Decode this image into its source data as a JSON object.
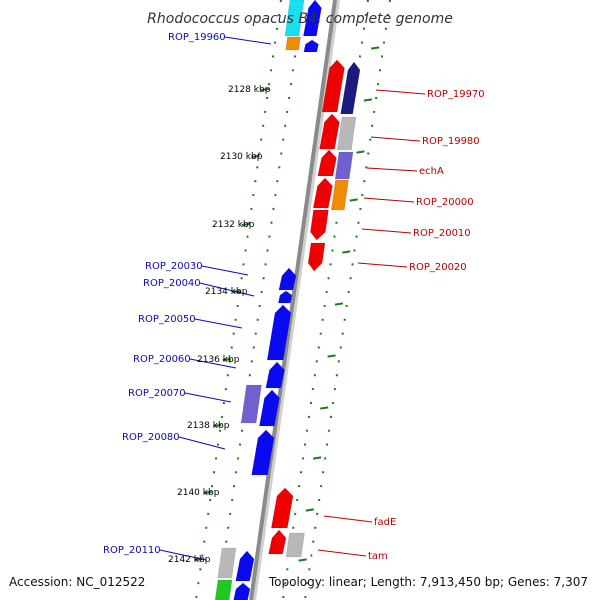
{
  "title": "Rhodococcus opacus B4, complete genome",
  "accession": "Accession: NC_012522",
  "summary": "Topology: linear; Length: 7,913,450 bp; Genes: 7,307",
  "colors": {
    "backbone": "#8a8a8a",
    "tick": "#1f7a1f",
    "blue_label": "#0b0bb0",
    "red_label": "#b80000"
  },
  "kbp_marks": [
    "2128 kbp",
    "2130 kbp",
    "2132 kbp",
    "2134 kbp",
    "2136 kbp",
    "2138 kbp",
    "2140 kbp",
    "2142 kbp"
  ],
  "left_labels": [
    "ROP_19960",
    "ROP_20030",
    "ROP_20040",
    "ROP_20050",
    "ROP_20060",
    "ROP_20070",
    "ROP_20080",
    "ROP_20110"
  ],
  "right_labels": [
    "ROP_19970",
    "ROP_19980",
    "echA",
    "ROP_20000",
    "ROP_20010",
    "ROP_20020",
    "fadE",
    "tam"
  ],
  "gene_colors": {
    "blue": "#0a0af0",
    "red": "#f00000",
    "grey": "#b8b8b8",
    "navy": "#1a1a80",
    "violet": "#7060d0",
    "orange": "#f08c00",
    "cyan": "#19e0f0",
    "green": "#22c822"
  }
}
